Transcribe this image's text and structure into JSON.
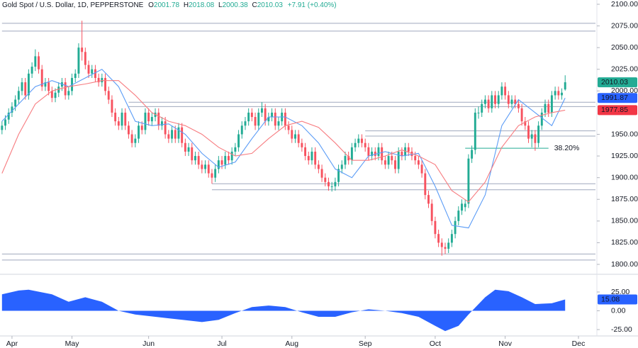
{
  "chart_data": {
    "type": "candlestick",
    "title": "Gold Spot / U.S. Dollar, 1D, PEPPERSTONE",
    "ohlc_prefixes": [
      "O",
      "H",
      "L",
      "C"
    ],
    "change": "+7.91 (+0.40%)",
    "up_color": "#22ab94",
    "down_color": "#f7525f",
    "open": [
      1955,
      1960,
      1967,
      1975,
      1982,
      1990,
      2000,
      2010,
      1995,
      2020,
      2028,
      2040,
      2025,
      2005,
      2010,
      2000,
      1992,
      1998,
      2005,
      2010,
      1995,
      2000,
      2015,
      2020,
      2050,
      2045,
      2030,
      2020,
      2025,
      2015,
      2010,
      2015,
      2000,
      1990,
      1975,
      1965,
      1960,
      1975,
      1960,
      1950,
      1940,
      1945,
      1960,
      1955,
      1975,
      1965,
      1970,
      1975,
      1960,
      1965,
      1950,
      1945,
      1955,
      1945,
      1958,
      1940,
      1930,
      1935,
      1920,
      1925,
      1915,
      1910,
      1915,
      1905,
      1900,
      1910,
      1920,
      1915,
      1925,
      1920,
      1930,
      1935,
      1950,
      1960,
      1965,
      1975,
      1970,
      1960,
      1975,
      1980,
      1965,
      1970,
      1975,
      1960,
      1965,
      1975,
      1960,
      1955,
      1945,
      1950,
      1940,
      1935,
      1925,
      1920,
      1930,
      1915,
      1910,
      1900,
      1895,
      1890,
      1890,
      1895,
      1910,
      1915,
      1925,
      1920,
      1935,
      1940,
      1945,
      1940,
      1935,
      1925,
      1930,
      1925,
      1935,
      1920,
      1915,
      1925,
      1920,
      1910,
      1930,
      1925,
      1935,
      1930,
      1925,
      1920,
      1915,
      1905,
      1880,
      1870,
      1850,
      1835,
      1825,
      1820,
      1818,
      1825,
      1835,
      1850,
      1862,
      1866,
      1870,
      1922,
      1932,
      1975,
      1975,
      1985,
      1990,
      1980,
      1995,
      1985,
      1995,
      2005,
      1995,
      1985,
      1990,
      1985,
      1980,
      1965,
      1960,
      1945,
      1950,
      1940,
      1960,
      1975,
      1985,
      1975,
      1995,
      2000,
      1995,
      2001.78
    ],
    "high": [
      1965,
      1972,
      1980,
      1987,
      1995,
      2005,
      2015,
      2015,
      2025,
      2033,
      2048,
      2045,
      2030,
      2015,
      2015,
      2005,
      2003,
      2010,
      2015,
      2015,
      2005,
      2020,
      2025,
      2055,
      2081,
      2050,
      2035,
      2030,
      2030,
      2020,
      2020,
      2020,
      2005,
      1995,
      1980,
      1970,
      1980,
      1980,
      1965,
      1955,
      1950,
      1965,
      1965,
      1980,
      1980,
      1975,
      1980,
      1980,
      1970,
      1970,
      1955,
      1960,
      1960,
      1963,
      1963,
      1945,
      1940,
      1940,
      1930,
      1930,
      1920,
      1920,
      1920,
      1910,
      1915,
      1925,
      1925,
      1930,
      1930,
      1935,
      1940,
      1955,
      1965,
      1970,
      1980,
      1980,
      1975,
      1980,
      1987,
      1985,
      1975,
      1980,
      1980,
      1970,
      1980,
      1980,
      1965,
      1960,
      1955,
      1955,
      1945,
      1940,
      1930,
      1935,
      1935,
      1920,
      1915,
      1905,
      1900,
      1895,
      1900,
      1915,
      1920,
      1930,
      1930,
      1940,
      1945,
      1950,
      1950,
      1945,
      1940,
      1935,
      1935,
      1940,
      1940,
      1925,
      1930,
      1930,
      1925,
      1935,
      1935,
      1940,
      1940,
      1935,
      1930,
      1925,
      1920,
      1910,
      1885,
      1875,
      1855,
      1840,
      1830,
      1825,
      1830,
      1840,
      1855,
      1867,
      1875,
      1875,
      1927,
      1937,
      1980,
      1982,
      1990,
      1995,
      1995,
      2000,
      2000,
      2000,
      2010,
      2010,
      2000,
      1995,
      1995,
      1990,
      1985,
      1970,
      1965,
      1955,
      1955,
      1965,
      1980,
      1990,
      1990,
      2000,
      2005,
      2005,
      2003,
      2018.08
    ],
    "low": [
      1950,
      1955,
      1962,
      1970,
      1977,
      1985,
      1995,
      1990,
      1990,
      2015,
      2023,
      2020,
      2000,
      2000,
      1995,
      1987,
      1987,
      1993,
      2000,
      1990,
      1990,
      1995,
      2010,
      2015,
      2035,
      2025,
      2015,
      2015,
      2010,
      2005,
      2005,
      1995,
      1985,
      1970,
      1960,
      1955,
      1955,
      1955,
      1945,
      1935,
      1935,
      1940,
      1950,
      1950,
      1960,
      1960,
      1965,
      1955,
      1955,
      1945,
      1940,
      1940,
      1940,
      1940,
      1935,
      1925,
      1925,
      1915,
      1915,
      1910,
      1905,
      1905,
      1900,
      1893,
      1895,
      1905,
      1910,
      1910,
      1915,
      1915,
      1925,
      1930,
      1945,
      1955,
      1960,
      1965,
      1955,
      1955,
      1970,
      1960,
      1960,
      1965,
      1955,
      1955,
      1960,
      1955,
      1950,
      1940,
      1940,
      1935,
      1930,
      1920,
      1915,
      1915,
      1910,
      1905,
      1895,
      1890,
      1885,
      1884,
      1885,
      1890,
      1905,
      1910,
      1915,
      1915,
      1930,
      1935,
      1935,
      1930,
      1920,
      1920,
      1920,
      1920,
      1915,
      1910,
      1910,
      1915,
      1905,
      1905,
      1920,
      1920,
      1925,
      1920,
      1915,
      1910,
      1900,
      1875,
      1865,
      1845,
      1830,
      1820,
      1810,
      1812,
      1813,
      1820,
      1830,
      1845,
      1857,
      1861,
      1865,
      1917,
      1927,
      1968,
      1970,
      1980,
      1975,
      1975,
      1980,
      1980,
      1990,
      1990,
      1980,
      1980,
      1980,
      1975,
      1960,
      1955,
      1940,
      1935,
      1931,
      1935,
      1955,
      1970,
      1970,
      1970,
      1990,
      1990,
      1990,
      2000.38
    ],
    "close": [
      1960,
      1967,
      1975,
      1982,
      1990,
      2000,
      2010,
      1995,
      2020,
      2028,
      2040,
      2025,
      2005,
      2010,
      2000,
      1992,
      1998,
      2005,
      2010,
      1995,
      2000,
      2015,
      2020,
      2050,
      2045,
      2030,
      2020,
      2025,
      2015,
      2010,
      2015,
      2000,
      1990,
      1975,
      1965,
      1960,
      1975,
      1960,
      1950,
      1940,
      1945,
      1960,
      1955,
      1975,
      1965,
      1970,
      1975,
      1960,
      1965,
      1950,
      1945,
      1955,
      1945,
      1958,
      1940,
      1930,
      1935,
      1920,
      1925,
      1915,
      1910,
      1915,
      1905,
      1900,
      1910,
      1920,
      1915,
      1925,
      1920,
      1930,
      1935,
      1950,
      1960,
      1965,
      1975,
      1970,
      1960,
      1975,
      1980,
      1965,
      1970,
      1975,
      1960,
      1965,
      1975,
      1960,
      1955,
      1945,
      1950,
      1940,
      1935,
      1925,
      1920,
      1930,
      1915,
      1910,
      1900,
      1895,
      1890,
      1890,
      1895,
      1910,
      1915,
      1925,
      1920,
      1935,
      1940,
      1945,
      1940,
      1935,
      1925,
      1930,
      1925,
      1935,
      1920,
      1915,
      1925,
      1920,
      1910,
      1930,
      1925,
      1935,
      1930,
      1925,
      1920,
      1915,
      1905,
      1880,
      1870,
      1850,
      1835,
      1825,
      1820,
      1818,
      1825,
      1835,
      1850,
      1862,
      1870,
      1870,
      1922,
      1932,
      1975,
      1975,
      1985,
      1990,
      1980,
      1995,
      1985,
      1995,
      2005,
      1995,
      1985,
      1990,
      1985,
      1980,
      1965,
      1960,
      1945,
      1950,
      1940,
      1960,
      1975,
      1985,
      1975,
      1995,
      2000,
      1995,
      1998,
      2010.03
    ],
    "moving_averages": [
      {
        "color": "#5b9cf6",
        "badge_color": "#2962ff",
        "x": [
          0,
          5,
          10,
          15,
          20,
          25,
          30,
          35,
          40,
          45,
          50,
          55,
          60,
          65,
          70,
          75,
          80,
          85,
          90,
          95,
          100,
          105,
          110,
          115,
          120,
          125,
          130,
          135,
          140,
          145,
          150,
          155,
          160,
          165,
          169
        ],
        "values": [
          1965,
          1985,
          2005,
          2012,
          2005,
          2015,
          2025,
          2005,
          1965,
          1960,
          1962,
          1950,
          1928,
          1912,
          1918,
          1945,
          1970,
          1970,
          1960,
          1940,
          1910,
          1900,
          1925,
          1930,
          1925,
          1928,
          1890,
          1845,
          1842,
          1880,
          1960,
          1990,
          1975,
          1960,
          1991.87
        ]
      },
      {
        "color": "#f77c80",
        "badge_color": "#f23645",
        "x": [
          0,
          5,
          10,
          15,
          20,
          25,
          30,
          35,
          40,
          45,
          50,
          55,
          60,
          65,
          70,
          75,
          80,
          85,
          90,
          95,
          100,
          105,
          110,
          115,
          120,
          125,
          130,
          135,
          140,
          145,
          150,
          155,
          160,
          165,
          169
        ],
        "values": [
          1905,
          1950,
          1985,
          2000,
          2005,
          2008,
          2012,
          2012,
          1995,
          1975,
          1965,
          1960,
          1950,
          1935,
          1925,
          1928,
          1945,
          1960,
          1965,
          1958,
          1940,
          1920,
          1920,
          1925,
          1932,
          1925,
          1915,
          1885,
          1872,
          1895,
          1935,
          1960,
          1970,
          1975,
          1977.85
        ]
      }
    ],
    "levels": [
      {
        "value": 2078,
        "start": 0
      },
      {
        "value": 2069,
        "start": 0
      },
      {
        "value": 1987,
        "start": 38
      },
      {
        "value": 1982,
        "start": 38
      },
      {
        "value": 1954,
        "start": 109
      },
      {
        "value": 1948,
        "start": 109
      },
      {
        "value": 1893,
        "start": 63
      },
      {
        "value": 1886,
        "start": 63
      },
      {
        "value": 1812,
        "start": 0
      },
      {
        "value": 1805,
        "start": 0
      }
    ],
    "fib": {
      "label": "38.20%",
      "value": 1934,
      "start": 139,
      "end": 164,
      "color": "#22ab94"
    },
    "xlim": [
      -0.6,
      178.1
    ],
    "xticks": [
      {
        "value": 3,
        "label": "Apr"
      },
      {
        "value": 21,
        "label": "May"
      },
      {
        "value": 44,
        "label": "Jun"
      },
      {
        "value": 66,
        "label": "Jul"
      },
      {
        "value": 87,
        "label": "Aug"
      },
      {
        "value": 109,
        "label": "Sep"
      },
      {
        "value": 130,
        "label": "Oct"
      },
      {
        "value": 151,
        "label": "Nov"
      },
      {
        "value": 173,
        "label": "Dec"
      }
    ],
    "ylim": [
      1800,
      2100
    ],
    "yticks": [
      {
        "value": 1800,
        "label": "1800.00"
      },
      {
        "value": 1825,
        "label": "1825.00"
      },
      {
        "value": 1850,
        "label": "1850.00"
      },
      {
        "value": 1875,
        "label": "1875.00"
      },
      {
        "value": 1900,
        "label": "1900.00"
      },
      {
        "value": 1925,
        "label": "1925.00"
      },
      {
        "value": 1950,
        "label": "1950.00"
      },
      {
        "value": 2000,
        "label": "2000.00"
      },
      {
        "value": 2025,
        "label": "2025.00"
      },
      {
        "value": 2050,
        "label": "2050.00"
      },
      {
        "value": 2075,
        "label": "2075.00"
      },
      {
        "value": 2100,
        "label": "2100.00"
      }
    ],
    "oscillator": {
      "type": "area",
      "color": "#2962ff",
      "x": [
        0,
        5,
        8,
        15,
        20,
        25,
        30,
        35,
        40,
        50,
        60,
        65,
        70,
        75,
        80,
        85,
        90,
        95,
        100,
        105,
        110,
        115,
        120,
        125,
        130,
        133,
        137,
        140,
        145,
        148,
        152,
        156,
        160,
        165,
        169
      ],
      "values": [
        22,
        27,
        28,
        22,
        12,
        18,
        12,
        0,
        -5,
        -10,
        -15,
        -12,
        -3,
        5,
        7,
        5,
        -2,
        -8,
        -8,
        -2,
        2,
        0,
        -3,
        -8,
        -20,
        -27,
        -20,
        -5,
        18,
        28,
        26,
        18,
        9,
        10,
        15.08
      ],
      "ylim": [
        -25,
        25
      ],
      "yticks": [
        {
          "value": 25,
          "label": "25.00"
        },
        {
          "value": 0,
          "label": "0.00"
        },
        {
          "value": -25,
          "label": "-25.00"
        }
      ]
    }
  }
}
